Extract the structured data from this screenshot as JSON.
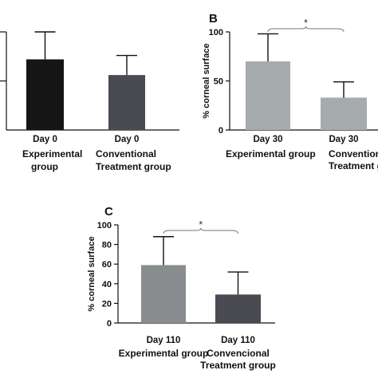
{
  "chart_data": [
    {
      "type": "bar",
      "panel_label": "",
      "ylabel": "",
      "ylim": [
        0,
        100
      ],
      "yticks": [],
      "categories": [
        "Day 0",
        "Day 0"
      ],
      "group_lines": [
        [
          "Experimental",
          "group"
        ],
        [
          "Conventional",
          "Treatment group"
        ]
      ],
      "values": [
        72,
        56
      ],
      "errors": [
        28,
        20
      ],
      "colors": [
        "#151515",
        "#4a4a52"
      ],
      "significance": ""
    },
    {
      "type": "bar",
      "panel_label": "B",
      "ylabel": "% corneal surface",
      "ylim": [
        0,
        100
      ],
      "yticks": [
        "0",
        "50",
        "100"
      ],
      "categories": [
        "Day 30",
        "Day 30"
      ],
      "group_lines": [
        [
          "Experimental group"
        ],
        [
          "Conventional",
          "Treatment group"
        ]
      ],
      "values": [
        70,
        33
      ],
      "errors": [
        28,
        16
      ],
      "colors": [
        "#a6acad",
        "#a6acad"
      ],
      "significance": "*"
    },
    {
      "type": "bar",
      "panel_label": "C",
      "ylabel": "% corneal surface",
      "ylim": [
        0,
        100
      ],
      "yticks": [
        "0",
        "20",
        "40",
        "60",
        "80",
        "100"
      ],
      "categories": [
        "Day 110",
        "Day 110"
      ],
      "group_lines": [
        [
          "Experimental group"
        ],
        [
          "Convencional",
          "Treatment group"
        ]
      ],
      "values": [
        59,
        29
      ],
      "errors": [
        29,
        23
      ],
      "colors": [
        "#8a8d8f",
        "#4a4a52"
      ],
      "significance": "*"
    }
  ]
}
